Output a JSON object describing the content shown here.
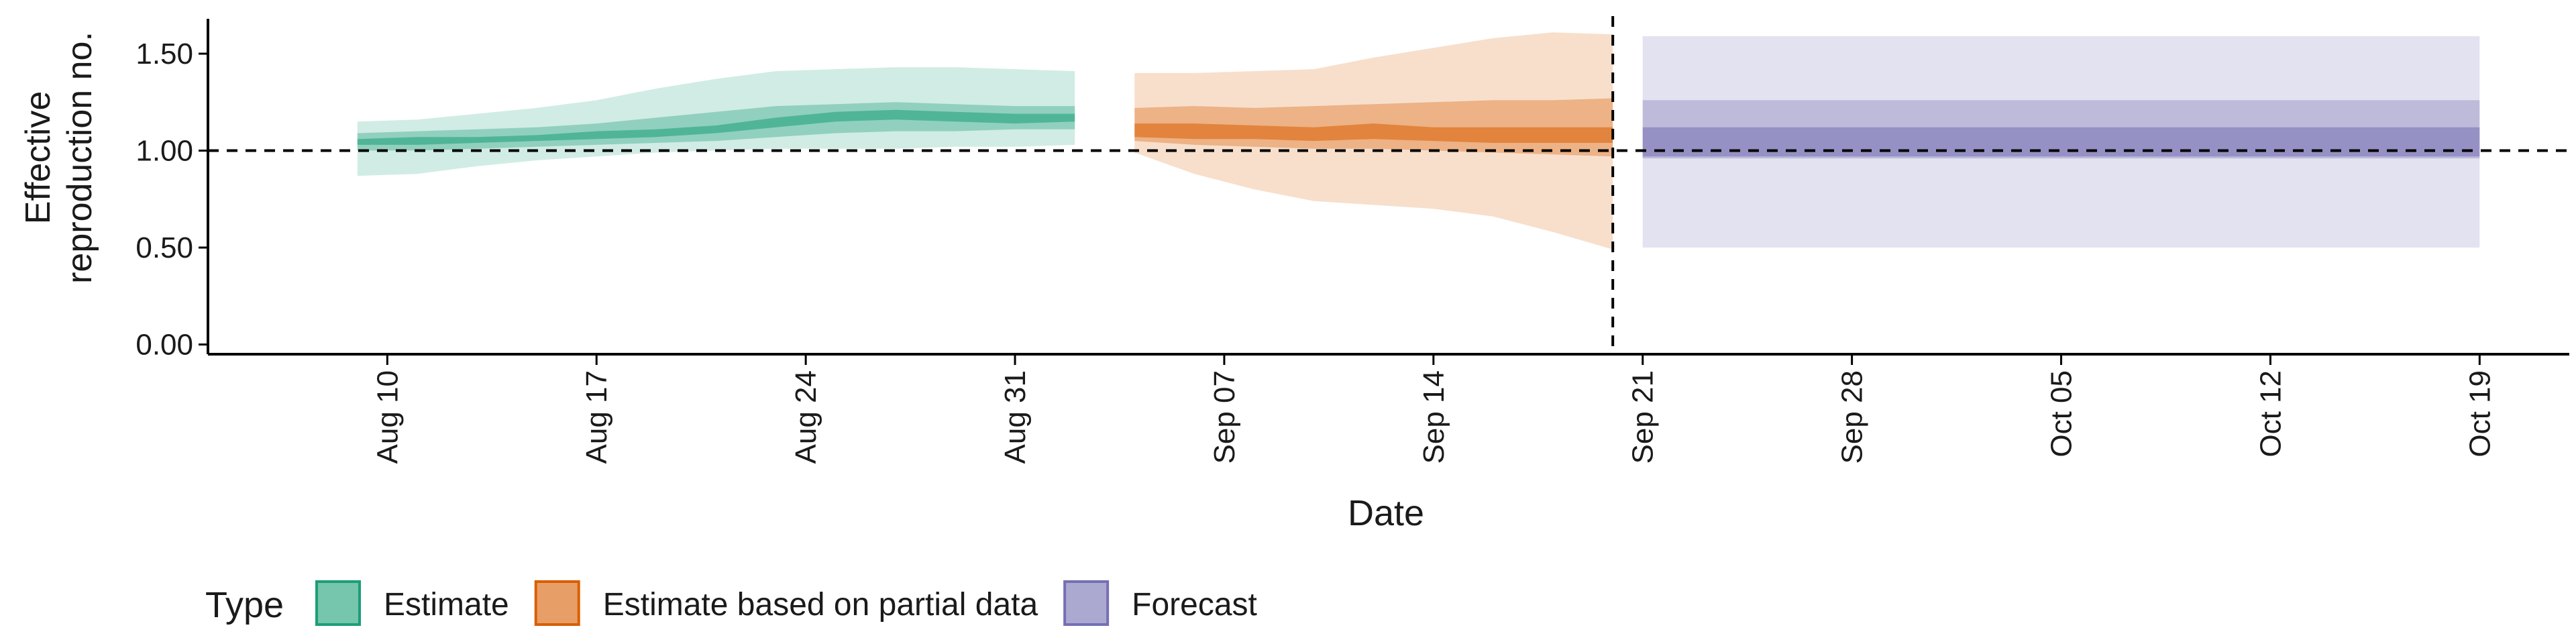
{
  "chart_data": {
    "type": "area",
    "xlabel": "Date",
    "ylabel_lines": [
      "Effective",
      "reproduction no."
    ],
    "ylim": [
      -0.05,
      1.68
    ],
    "yticks": [
      0.0,
      0.5,
      1.0,
      1.5
    ],
    "ytick_labels": [
      "0.00",
      "0.50",
      "1.00",
      "1.50"
    ],
    "xlim": [
      "2021-08-04",
      "2021-10-22"
    ],
    "xtick_dates": [
      "2021-08-10",
      "2021-08-17",
      "2021-08-24",
      "2021-08-31",
      "2021-09-07",
      "2021-09-14",
      "2021-09-21",
      "2021-09-28",
      "2021-10-05",
      "2021-10-12",
      "2021-10-19"
    ],
    "xtick_labels": [
      "Aug 10",
      "Aug 17",
      "Aug 24",
      "Aug 31",
      "Sep 07",
      "Sep 14",
      "Sep 21",
      "Sep 28",
      "Oct 05",
      "Oct 12",
      "Oct 19"
    ],
    "reference_line": 1.0,
    "forecast_date": "2021-09-20",
    "legend": {
      "title": "Type",
      "position": "bottom",
      "items": [
        {
          "label": "Estimate",
          "color": "#1b9e77"
        },
        {
          "label": "Estimate based on partial data",
          "color": "#d95f02"
        },
        {
          "label": "Forecast",
          "color": "#7570b3"
        }
      ]
    },
    "series": [
      {
        "name": "Estimate",
        "color": "#1b9e77",
        "dates": [
          "2021-08-09",
          "2021-08-11",
          "2021-08-13",
          "2021-08-15",
          "2021-08-17",
          "2021-08-19",
          "2021-08-21",
          "2021-08-23",
          "2021-08-25",
          "2021-08-27",
          "2021-08-29",
          "2021-08-31",
          "2021-09-02"
        ],
        "bands": [
          {
            "level": "90%",
            "opacity": 0.2,
            "lower": [
              0.87,
              0.88,
              0.92,
              0.95,
              0.97,
              0.99,
              1.0,
              1.01,
              1.01,
              1.01,
              1.02,
              1.02,
              1.03
            ],
            "upper": [
              1.15,
              1.16,
              1.19,
              1.22,
              1.26,
              1.32,
              1.37,
              1.41,
              1.42,
              1.43,
              1.43,
              1.42,
              1.41
            ]
          },
          {
            "level": "50%",
            "opacity": 0.35,
            "lower": [
              1.0,
              1.0,
              1.01,
              1.02,
              1.03,
              1.04,
              1.05,
              1.07,
              1.09,
              1.1,
              1.1,
              1.11,
              1.11
            ],
            "upper": [
              1.09,
              1.1,
              1.11,
              1.12,
              1.14,
              1.17,
              1.2,
              1.23,
              1.24,
              1.25,
              1.24,
              1.23,
              1.23
            ]
          },
          {
            "level": "20%",
            "opacity": 0.55,
            "lower": [
              1.03,
              1.03,
              1.04,
              1.05,
              1.06,
              1.07,
              1.09,
              1.12,
              1.15,
              1.16,
              1.15,
              1.14,
              1.15
            ],
            "upper": [
              1.06,
              1.07,
              1.07,
              1.08,
              1.1,
              1.11,
              1.13,
              1.17,
              1.2,
              1.21,
              1.2,
              1.19,
              1.19
            ]
          }
        ]
      },
      {
        "name": "Estimate based on partial data",
        "color": "#d95f02",
        "dates": [
          "2021-09-04",
          "2021-09-06",
          "2021-09-08",
          "2021-09-10",
          "2021-09-12",
          "2021-09-14",
          "2021-09-16",
          "2021-09-18",
          "2021-09-20"
        ],
        "bands": [
          {
            "level": "90%",
            "opacity": 0.2,
            "lower": [
              0.99,
              0.88,
              0.8,
              0.74,
              0.72,
              0.7,
              0.66,
              0.58,
              0.49
            ],
            "upper": [
              1.4,
              1.4,
              1.41,
              1.42,
              1.48,
              1.53,
              1.58,
              1.61,
              1.6
            ]
          },
          {
            "level": "50%",
            "opacity": 0.35,
            "lower": [
              1.05,
              1.03,
              1.02,
              1.01,
              1.01,
              1.0,
              0.99,
              0.98,
              0.97
            ],
            "upper": [
              1.22,
              1.23,
              1.22,
              1.23,
              1.24,
              1.25,
              1.26,
              1.26,
              1.27
            ]
          },
          {
            "level": "20%",
            "opacity": 0.55,
            "lower": [
              1.07,
              1.06,
              1.06,
              1.05,
              1.06,
              1.05,
              1.04,
              1.04,
              1.04
            ],
            "upper": [
              1.14,
              1.14,
              1.13,
              1.12,
              1.14,
              1.12,
              1.12,
              1.12,
              1.12
            ]
          }
        ]
      },
      {
        "name": "Forecast",
        "color": "#7570b3",
        "dates": [
          "2021-09-21",
          "2021-10-19"
        ],
        "bands": [
          {
            "level": "90%",
            "opacity": 0.2,
            "lower": [
              0.5,
              0.5
            ],
            "upper": [
              1.59,
              1.59
            ]
          },
          {
            "level": "50%",
            "opacity": 0.35,
            "lower": [
              0.96,
              0.96
            ],
            "upper": [
              1.26,
              1.26
            ]
          },
          {
            "level": "20%",
            "opacity": 0.55,
            "lower": [
              0.97,
              0.97
            ],
            "upper": [
              1.12,
              1.12
            ]
          }
        ]
      }
    ]
  }
}
